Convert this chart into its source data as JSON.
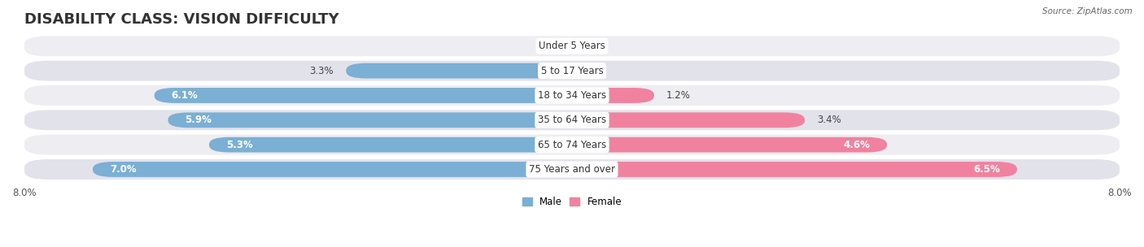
{
  "title": "DISABILITY CLASS: VISION DIFFICULTY",
  "source": "Source: ZipAtlas.com",
  "categories": [
    "Under 5 Years",
    "5 to 17 Years",
    "18 to 34 Years",
    "35 to 64 Years",
    "65 to 74 Years",
    "75 Years and over"
  ],
  "male_values": [
    0.0,
    3.3,
    6.1,
    5.9,
    5.3,
    7.0
  ],
  "female_values": [
    0.0,
    0.0,
    1.2,
    3.4,
    4.6,
    6.5
  ],
  "male_color": "#7bafd4",
  "female_color": "#f082a0",
  "row_bg_color_odd": "#ededf2",
  "row_bg_color_even": "#e2e2ea",
  "max_val": 8.0,
  "title_fontsize": 13,
  "label_fontsize": 8.5,
  "tick_fontsize": 8.5,
  "figsize": [
    14.06,
    3.04
  ],
  "dpi": 100
}
